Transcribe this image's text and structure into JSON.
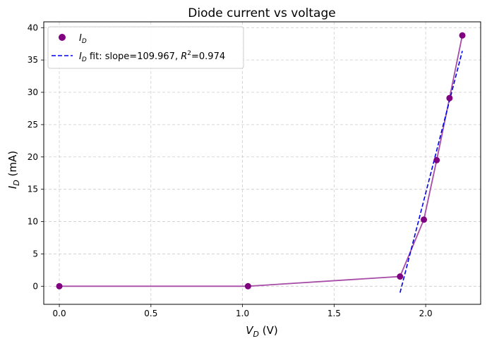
{
  "chart_data": {
    "type": "scatter",
    "title": "Diode current vs voltage",
    "xlabel_var": "V",
    "xlabel_sub": "D",
    "xlabel_unit": " (V)",
    "ylabel_var": "I",
    "ylabel_sub": "D",
    "ylabel_unit": " (mA)",
    "xlim": [
      -0.085,
      2.3
    ],
    "ylim": [
      -2.8,
      40.9
    ],
    "xticks": [
      0.0,
      0.5,
      1.0,
      1.5,
      2.0
    ],
    "xtick_labels": [
      "0.0",
      "0.5",
      "1.0",
      "1.5",
      "2.0"
    ],
    "yticks": [
      0,
      5,
      10,
      15,
      20,
      25,
      30,
      35,
      40
    ],
    "ytick_labels": [
      "0",
      "5",
      "10",
      "15",
      "20",
      "25",
      "30",
      "35",
      "40"
    ],
    "grid": true,
    "legend_position": "top-left",
    "series": [
      {
        "name": "I_D",
        "label_var": "I",
        "label_sub": "D",
        "kind": "scatter+line",
        "marker_color": "#800080",
        "line_color": "#a64ca6",
        "x": [
          0.0,
          1.03,
          1.86,
          1.99,
          2.06,
          2.13,
          2.2
        ],
        "y": [
          0.0,
          0.0,
          1.5,
          10.3,
          19.5,
          29.1,
          38.8
        ]
      },
      {
        "name": "I_D fit",
        "label_var": "I",
        "label_sub": "D",
        "label_rest": " fit: slope=109.967, ",
        "label_r2_var": "R",
        "label_r2_sup": "2",
        "label_r2_val": "=0.974",
        "kind": "dashed-line",
        "line_color": "#0000ee",
        "x": [
          1.86,
          2.2
        ],
        "y": [
          -1.0,
          36.4
        ]
      }
    ]
  }
}
